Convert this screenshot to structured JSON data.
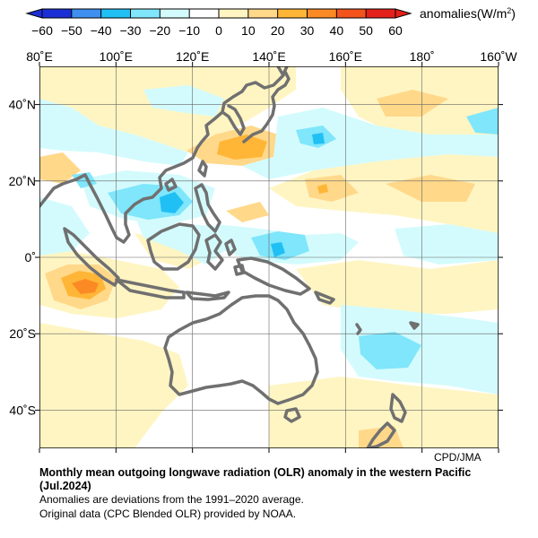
{
  "legend": {
    "label_prefix": "anomalies(W/m",
    "label_sup": "2",
    "label_suffix": ")",
    "ticks": [
      "−60",
      "−50",
      "−40",
      "−30",
      "−20",
      "−10",
      "0",
      "10",
      "20",
      "30",
      "40",
      "50",
      "60"
    ],
    "colors": [
      "#1c2fd6",
      "#3f8ff0",
      "#20c0f4",
      "#7fe6fb",
      "#d3fbfd",
      "#ffffff",
      "#ffffff",
      "#fff5c2",
      "#ffd88a",
      "#ffb536",
      "#fb8a25",
      "#f2541c",
      "#e3211a"
    ]
  },
  "axes": {
    "lon_labels": [
      "80˚E",
      "100˚E",
      "120˚E",
      "140˚E",
      "160˚E",
      "180˚",
      "160˚W"
    ],
    "lon_values": [
      80,
      100,
      120,
      140,
      160,
      180,
      200
    ],
    "lat_labels": [
      "40˚N",
      "20˚N",
      "0˚",
      "20˚S",
      "40˚S"
    ],
    "lat_values": [
      40,
      20,
      0,
      -20,
      -40
    ],
    "lon_range": [
      80,
      200
    ],
    "lat_range": [
      -50,
      50
    ],
    "grid": true
  },
  "map_colors": {
    "neutral": "#ffffff",
    "pos10": "#fff5c2",
    "pos20": "#ffd88a",
    "pos30": "#ffb536",
    "pos40": "#fb8a25",
    "neg10": "#d3fbfd",
    "neg20": "#7fe6fb",
    "neg30": "#20c0f4",
    "coast": "#707070"
  },
  "credit": "CPD/JMA",
  "caption": {
    "title": "Monthly mean outgoing longwave radiation (OLR) anomaly in the western Pacific (Jul.2024)",
    "note1": "Anomalies are deviations from the 1991–2020 average.",
    "note2": "Original data (CPC Blended OLR) provided by NOAA."
  }
}
